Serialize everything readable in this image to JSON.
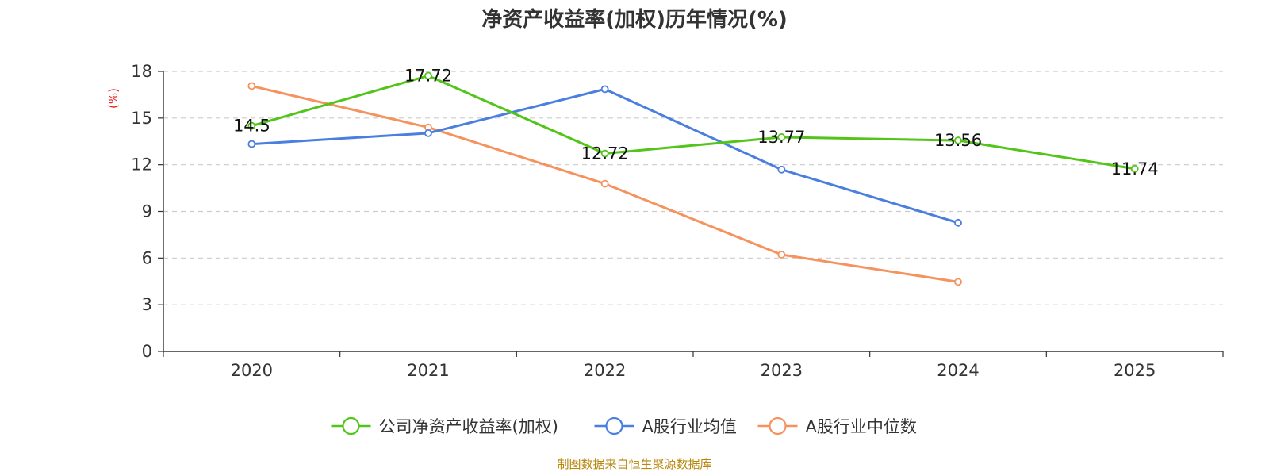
{
  "chart_data": {
    "type": "line",
    "title": "净资产收益率(加权)历年情况(%)",
    "xlabel": "",
    "ylabel": "(%)",
    "categories": [
      "2020",
      "2021",
      "2022",
      "2023",
      "2024",
      "2025"
    ],
    "ylim": [
      0,
      18
    ],
    "yticks": [
      0,
      3,
      6,
      9,
      12,
      15,
      18
    ],
    "grid": true,
    "legend_position": "bottom",
    "series": [
      {
        "name": "公司净资产收益率(加权)",
        "color": "#52c41a",
        "values": [
          14.5,
          17.72,
          12.72,
          13.77,
          13.56,
          11.74
        ],
        "labels": [
          "14.5",
          "17.72",
          "12.72",
          "13.77",
          "13.56",
          "11.74"
        ]
      },
      {
        "name": "A股行业均值",
        "color": "#4a7fe0",
        "values": [
          13.33,
          14.03,
          16.86,
          11.69,
          8.27,
          null
        ]
      },
      {
        "name": "A股行业中位数",
        "color": "#f5925e",
        "values": [
          17.06,
          14.4,
          10.78,
          6.22,
          4.47,
          null
        ]
      }
    ],
    "source": "制图数据来自恒生聚源数据库"
  }
}
